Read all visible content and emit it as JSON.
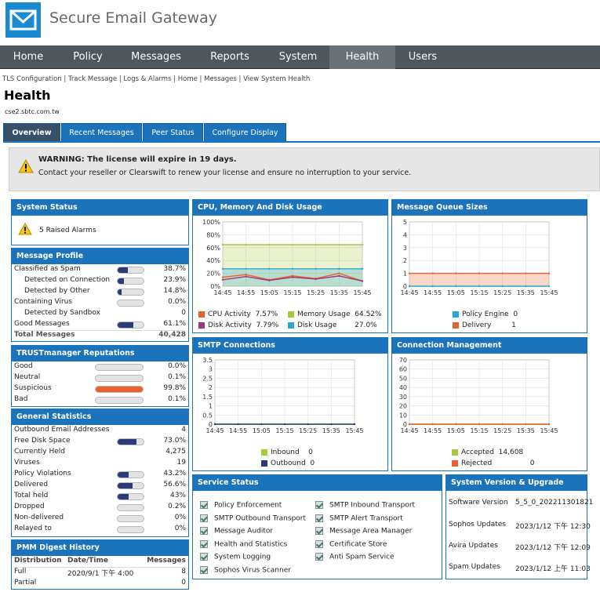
{
  "app": {
    "title": "Secure Email Gateway"
  },
  "nav": {
    "items": [
      "Home",
      "Policy",
      "Messages",
      "Reports",
      "System",
      "Health",
      "Users"
    ],
    "active": "Health"
  },
  "breadcrumb": "TLS Configuration | Track Message | Logs & Alarms | Home | Messages | View System Health",
  "page": {
    "title": "Health",
    "hostname": "cse2.sbtc.com.tw"
  },
  "tabs": [
    "Overview",
    "Recent Messages",
    "Peer Status",
    "Configure Display"
  ],
  "warning": {
    "title": "WARNING: The license will expire in 19 days.",
    "text": "Contact your reseller or Clearswift to renew your license and ensure no interruption to your service."
  },
  "system_status": {
    "title": "System Status",
    "alarms": "5 Raised Alarms"
  },
  "message_profile": {
    "title": "Message Profile",
    "rows": [
      {
        "label": "Classified as Spam",
        "value": "38.7%",
        "fraction": 0.387
      },
      {
        "label": "Detected on Connection",
        "value": "23.9%",
        "fraction": 0.239
      },
      {
        "label": "Detected by Other",
        "value": "14.8%",
        "fraction": 0.148
      },
      {
        "label": "Containing Virus",
        "value": "0.0%",
        "fraction": 0.0
      },
      {
        "label": "Detected by Sandbox",
        "value": "0",
        "fraction": null
      },
      {
        "label": "Good Messages",
        "value": "61.1%",
        "fraction": 0.611
      }
    ],
    "total_label": "Total Messages",
    "total_value": "40,428"
  },
  "trustmanager": {
    "title": "TRUSTmanager Reputations",
    "rows": [
      {
        "label": "Good",
        "value": "0.0%",
        "fraction": 0.0
      },
      {
        "label": "Neutral",
        "value": "0.1%",
        "fraction": 0.001
      },
      {
        "label": "Suspicious",
        "value": "99.8%",
        "fraction": 0.998
      },
      {
        "label": "Bad",
        "value": "0.1%",
        "fraction": 0.001
      }
    ]
  },
  "general_statistics": {
    "title": "General Statistics",
    "rows": [
      {
        "label": "Outbound Email Addresses",
        "value": "4",
        "fraction": null
      },
      {
        "label": "Free Disk Space",
        "value": "73.0%",
        "fraction": 0.73
      },
      {
        "label": "Currently Held",
        "value": "4,275",
        "fraction": null
      },
      {
        "label": "Viruses",
        "value": "19",
        "fraction": null
      },
      {
        "label": "Policy Violations",
        "value": "43.2%",
        "fraction": 0.432
      },
      {
        "label": "Delivered",
        "value": "56.6%",
        "fraction": 0.566
      },
      {
        "label": "Total held",
        "value": "43%",
        "fraction": 0.43
      },
      {
        "label": "Dropped",
        "value": "0.2%",
        "fraction": 0.002
      },
      {
        "label": "Non-delivered",
        "value": "0%",
        "fraction": 0.0
      },
      {
        "label": "Relayed to",
        "value": "0%",
        "fraction": 0.0
      }
    ]
  },
  "pmm": {
    "title": "PMM Digest History",
    "headers": [
      "Distribution",
      "Date/Time",
      "Messages"
    ],
    "rows": [
      {
        "distribution": "Full",
        "datetime": "2020/9/1 下午 4:00",
        "messages": "8"
      },
      {
        "distribution": "Partial",
        "datetime": "",
        "messages": "0"
      }
    ]
  },
  "cpu_panel": {
    "title": "CPU, Memory And Disk Usage",
    "legend": [
      {
        "label": "CPU Activity",
        "value": "7.57%",
        "color": "#e8612f"
      },
      {
        "label": "Memory Usage",
        "value": "64.52%",
        "color": "#a8c83c"
      },
      {
        "label": "Disk Activity",
        "value": "7.79%",
        "color": "#9c3a7e"
      },
      {
        "label": "Disk Usage",
        "value": "27.0%",
        "color": "#29a8d6"
      }
    ]
  },
  "queue_panel": {
    "title": "Message Queue Sizes",
    "legend": [
      {
        "label": "Policy Engine",
        "value": "0",
        "color": "#29a8d6"
      },
      {
        "label": "Delivery",
        "value": "1",
        "color": "#e8612f"
      }
    ]
  },
  "smtp_panel": {
    "title": "SMTP Connections",
    "legend": [
      {
        "label": "Inbound",
        "value": "0",
        "color": "#a8c83c"
      },
      {
        "label": "Outbound",
        "value": "0",
        "color": "#2a3a7a"
      }
    ]
  },
  "conn_panel": {
    "title": "Connection Management",
    "legend": [
      {
        "label": "Accepted",
        "value": "14,608",
        "color": "#a8c83c"
      },
      {
        "label": "Rejected",
        "value": "0",
        "color": "#e8612f"
      }
    ]
  },
  "service_status": {
    "title": "Service Status",
    "left": [
      "Policy Enforcement",
      "SMTP Outbound Transport",
      "Message Auditor",
      "Health and Statistics",
      "System Logging",
      "Sophos Virus Scanner"
    ],
    "right": [
      "SMTP Inbound Transport",
      "SMTP Alert Transport",
      "Message Area Manager",
      "Certificate Store",
      "Anti Spam Service"
    ]
  },
  "version": {
    "title": "System Version & Upgrade",
    "rows": [
      {
        "label": "Software Version",
        "value": "5_5_0_202211301821"
      },
      {
        "label": "Sophos Updates",
        "value": "2023/1/12 下午 12:30"
      },
      {
        "label": "Avira Updates",
        "value": "2023/1/12 下午 12:09"
      },
      {
        "label": "Spam Updates",
        "value": "2023/1/12 上午 11:03"
      }
    ]
  },
  "chart_data": [
    {
      "type": "line",
      "title": "CPU, Memory And Disk Usage",
      "x": [
        "14:45",
        "14:55",
        "15:05",
        "15:15",
        "15:25",
        "15:35",
        "15:45"
      ],
      "y_ticks": [
        "0%",
        "20%",
        "40%",
        "60%",
        "80%",
        "100%"
      ],
      "ylim": [
        0,
        100
      ],
      "series": [
        {
          "name": "Memory Usage",
          "color": "#a8c83c",
          "values": [
            64.5,
            64.5,
            64.5,
            64.5,
            64.5,
            64.5,
            64.5
          ]
        },
        {
          "name": "Disk Usage",
          "color": "#29a8d6",
          "values": [
            27,
            27,
            27,
            27,
            27,
            27,
            27
          ]
        },
        {
          "name": "CPU Activity",
          "color": "#e8612f",
          "values": [
            14,
            18,
            10,
            16,
            12,
            20,
            8
          ]
        },
        {
          "name": "Disk Activity",
          "color": "#9c3a7e",
          "values": [
            10,
            15,
            9,
            14,
            11,
            16,
            8
          ]
        }
      ]
    },
    {
      "type": "line",
      "title": "Message Queue Sizes",
      "x": [
        "14:45",
        "14:55",
        "15:05",
        "15:15",
        "15:25",
        "15:35",
        "15:45"
      ],
      "y_ticks": [
        "0",
        "1",
        "2",
        "3",
        "4",
        "5"
      ],
      "ylim": [
        0,
        5
      ],
      "series": [
        {
          "name": "Delivery",
          "color": "#e8612f",
          "values": [
            1,
            1,
            1,
            1,
            1,
            1,
            1
          ]
        },
        {
          "name": "Policy Engine",
          "color": "#29a8d6",
          "values": [
            0,
            0,
            0,
            0,
            0,
            0,
            0
          ]
        }
      ]
    },
    {
      "type": "line",
      "title": "SMTP Connections",
      "x": [
        "14:45",
        "14:55",
        "15:05",
        "15:15",
        "15:25",
        "15:35",
        "15:45"
      ],
      "y_ticks": [
        "0",
        "0.5",
        "1",
        "1.5",
        "2",
        "2.5",
        "3",
        "3.5"
      ],
      "ylim": [
        0,
        3.5
      ],
      "series": [
        {
          "name": "Inbound",
          "color": "#a8c83c",
          "values": [
            0,
            0,
            0,
            0,
            0,
            0,
            0
          ]
        },
        {
          "name": "Outbound",
          "color": "#2a3a7a",
          "values": [
            0,
            0,
            0,
            0,
            0,
            0,
            0
          ]
        }
      ]
    },
    {
      "type": "line",
      "title": "Connection Management",
      "x": [
        "14:45",
        "14:55",
        "15:05",
        "15:15",
        "15:25",
        "15:35",
        "15:45"
      ],
      "y_ticks": [
        "0",
        "10",
        "20",
        "30",
        "40",
        "50",
        "60",
        "70"
      ],
      "ylim": [
        0,
        70
      ],
      "series": [
        {
          "name": "Accepted",
          "color": "#a8c83c",
          "values": [
            0,
            0,
            0,
            0,
            0,
            0,
            0
          ]
        },
        {
          "name": "Rejected",
          "color": "#e8612f",
          "values": [
            0,
            0,
            0,
            0,
            0,
            0,
            0
          ]
        }
      ]
    }
  ]
}
